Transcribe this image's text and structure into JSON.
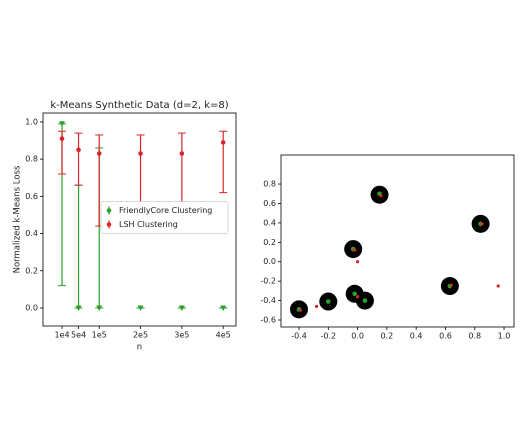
{
  "chart_data": [
    {
      "type": "errorbar",
      "title": "k-Means Synthetic Data (d=2, k=8)",
      "x_label": "n",
      "y_label": "Normalized k-Means Loss",
      "x": [
        10000,
        50000,
        100000,
        200000,
        300000,
        400000
      ],
      "xlim": [
        -36000,
        431000
      ],
      "xticks": [
        {
          "value": 10000,
          "label": "1e4"
        },
        {
          "value": 50000,
          "label": "5e4"
        },
        {
          "value": 100000,
          "label": "1e5"
        },
        {
          "value": 200000,
          "label": "2e5"
        },
        {
          "value": 300000,
          "label": "3e5"
        },
        {
          "value": 400000,
          "label": "4e5"
        }
      ],
      "ylim": [
        -0.097,
        1.048
      ],
      "yticks": [
        {
          "value": 0,
          "label": "0.0"
        },
        0.2,
        0.4,
        0.6,
        0.8,
        {
          "value": 1,
          "label": "1.0"
        }
      ],
      "legend": "center right",
      "series": [
        {
          "name": "FriendlyCore Clustering",
          "color": "#2ca02c",
          "values": [
            0.99,
            0.0,
            0.0,
            0.0,
            0.0,
            0.0
          ],
          "lower": [
            0.12,
            0.0,
            0.0,
            0.0,
            0.0,
            0.0
          ],
          "upper": [
            0.99,
            0.66,
            0.86,
            0.0,
            0.0,
            0.0
          ]
        },
        {
          "name": "LSH Clustering",
          "color": "#d62728",
          "values": [
            0.91,
            0.85,
            0.83,
            0.83,
            0.83,
            0.89
          ],
          "lower": [
            0.72,
            0.66,
            0.44,
            0.56,
            0.56,
            0.62
          ],
          "upper": [
            0.95,
            0.94,
            0.93,
            0.93,
            0.94,
            0.95
          ]
        }
      ]
    },
    {
      "type": "scatter",
      "xlim": [
        -0.523,
        1.068
      ],
      "xticks": [
        -0.4,
        -0.2,
        {
          "value": 0,
          "label": "0.0"
        },
        0.2,
        0.4,
        0.6,
        0.8,
        {
          "value": 1,
          "label": "1.0"
        }
      ],
      "ylim": [
        -0.672,
        1.099
      ],
      "yticks": [
        -0.6,
        -0.4,
        -0.2,
        {
          "value": 0,
          "label": "0.0"
        },
        0.2,
        0.4,
        0.6,
        0.8
      ],
      "series": [
        {
          "color": "#000000",
          "x": [
            0.15,
            0.84,
            -0.03,
            -0.4,
            -0.2,
            -0.02,
            0.05,
            0.63
          ],
          "y": [
            0.69,
            0.39,
            0.13,
            -0.49,
            -0.41,
            -0.33,
            -0.4,
            -0.25
          ]
        },
        {
          "color": "#2ca02c",
          "x": [
            0.15,
            0.84,
            -0.03,
            -0.4,
            -0.2,
            -0.02,
            0.05,
            0.63
          ],
          "y": [
            0.7,
            0.39,
            0.13,
            -0.49,
            -0.41,
            -0.33,
            -0.4,
            -0.25
          ]
        },
        {
          "color": "#d62728",
          "x": [
            0.16,
            0.85,
            -0.02,
            -0.39,
            -0.28,
            0.0,
            0.0,
            0.64,
            0.96
          ],
          "y": [
            0.68,
            0.39,
            0.12,
            -0.5,
            -0.46,
            0.0,
            -0.36,
            -0.24,
            -0.25
          ]
        }
      ]
    }
  ]
}
